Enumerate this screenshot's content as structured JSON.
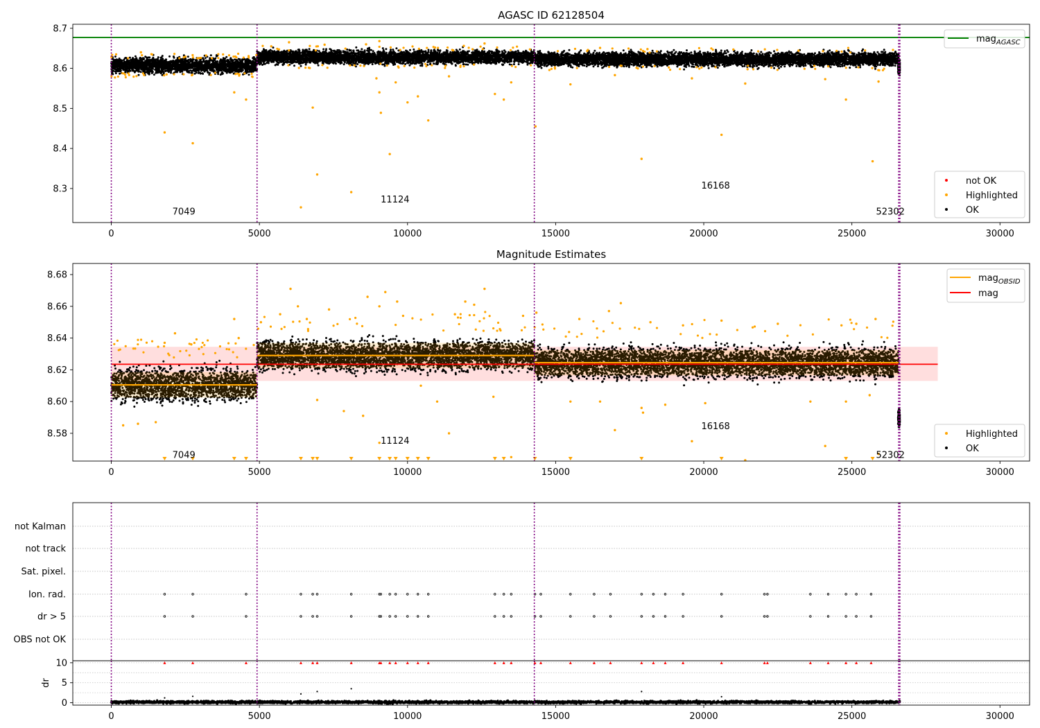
{
  "chart_data": [
    {
      "type": "scatter",
      "title": "AGASC ID 62128504",
      "xlim": [
        -1300,
        31000
      ],
      "ylim": [
        8.215,
        8.71
      ],
      "xticks": [
        0,
        5000,
        10000,
        15000,
        20000,
        25000,
        30000
      ],
      "xtick_labels": [
        "0",
        "5000",
        "10000",
        "15000",
        "20000",
        "25000",
        "30000"
      ],
      "yticks": [
        8.3,
        8.4,
        8.5,
        8.6,
        8.7
      ],
      "ytick_labels": [
        "8.3",
        "8.4",
        "8.5",
        "8.6",
        "8.7"
      ],
      "grid": false,
      "legend_upper": {
        "position": "upper-right",
        "entries": [
          {
            "name": "mag",
            "sub": "AGASC",
            "color": "#008000",
            "kind": "line"
          }
        ]
      },
      "legend_lower": {
        "position": "lower-right",
        "entries": [
          {
            "name": "not OK",
            "color": "#ff0000",
            "kind": "point"
          },
          {
            "name": "Highlighted",
            "color": "#ffa500",
            "kind": "point"
          },
          {
            "name": "OK",
            "color": "#000000",
            "kind": "point"
          }
        ]
      },
      "reference_line": {
        "name": "mag_AGASC",
        "y": 8.677,
        "color": "#008000"
      },
      "obs_boundaries": [
        0,
        4920,
        14280,
        26580,
        26620
      ],
      "obs_labels": [
        {
          "text": "7049",
          "x": 2450,
          "y": 8.235
        },
        {
          "text": "11124",
          "x": 9580,
          "y": 8.265
        },
        {
          "text": "16168",
          "x": 20400,
          "y": 8.3
        },
        {
          "text": "52302",
          "x": 26300,
          "y": 8.235
        }
      ],
      "ok_bands": [
        {
          "x0": 0,
          "x1": 4920,
          "center": 8.607,
          "spread": 0.02
        },
        {
          "x0": 4920,
          "x1": 14280,
          "center": 8.628,
          "spread": 0.018
        },
        {
          "x0": 14280,
          "x1": 26580,
          "center": 8.623,
          "spread": 0.018
        },
        {
          "x0": 26560,
          "x1": 26620,
          "center": 8.605,
          "spread": 0.02
        }
      ],
      "highlighted_points": [
        [
          1800,
          8.44
        ],
        [
          2750,
          8.413
        ],
        [
          4150,
          8.54
        ],
        [
          4550,
          8.522
        ],
        [
          6400,
          8.253
        ],
        [
          6800,
          8.502
        ],
        [
          6950,
          8.335
        ],
        [
          8100,
          8.291
        ],
        [
          8950,
          8.575
        ],
        [
          9050,
          8.54
        ],
        [
          9100,
          8.489
        ],
        [
          9400,
          8.386
        ],
        [
          9600,
          8.565
        ],
        [
          10000,
          8.515
        ],
        [
          10350,
          8.53
        ],
        [
          10700,
          8.47
        ],
        [
          11400,
          8.58
        ],
        [
          12950,
          8.536
        ],
        [
          13250,
          8.522
        ],
        [
          13500,
          8.565
        ],
        [
          14320,
          8.455
        ],
        [
          15500,
          8.56
        ],
        [
          17000,
          8.583
        ],
        [
          17900,
          8.374
        ],
        [
          19600,
          8.575
        ],
        [
          20600,
          8.434
        ],
        [
          21400,
          8.562
        ],
        [
          24100,
          8.573
        ],
        [
          24800,
          8.522
        ],
        [
          25700,
          8.368
        ],
        [
          25900,
          8.567
        ],
        [
          1000,
          8.64
        ],
        [
          3200,
          8.632
        ],
        [
          5400,
          8.655
        ],
        [
          6000,
          8.665
        ],
        [
          7200,
          8.659
        ],
        [
          8600,
          8.66
        ],
        [
          9050,
          8.668
        ],
        [
          11900,
          8.656
        ],
        [
          12600,
          8.662
        ],
        [
          16500,
          8.651
        ],
        [
          18100,
          8.648
        ],
        [
          21000,
          8.647
        ],
        [
          23200,
          8.644
        ]
      ]
    },
    {
      "type": "scatter",
      "title": "Magnitude Estimates",
      "xlim": [
        -1300,
        31000
      ],
      "ylim": [
        8.5625,
        8.687
      ],
      "xticks": [
        0,
        5000,
        10000,
        15000,
        20000,
        25000,
        30000
      ],
      "xtick_labels": [
        "0",
        "5000",
        "10000",
        "15000",
        "20000",
        "25000",
        "30000"
      ],
      "yticks": [
        8.58,
        8.6,
        8.62,
        8.64,
        8.66,
        8.68
      ],
      "ytick_labels": [
        "8.58",
        "8.60",
        "8.62",
        "8.64",
        "8.66",
        "8.68"
      ],
      "grid": false,
      "legend_upper": {
        "position": "upper-right",
        "entries": [
          {
            "name": "mag",
            "sub": "OBSID",
            "color": "#ffa500",
            "kind": "line"
          },
          {
            "name": "mag",
            "sub": "",
            "color": "#ff0000",
            "kind": "line"
          }
        ]
      },
      "legend_lower": {
        "position": "lower-right",
        "entries": [
          {
            "name": "Highlighted",
            "color": "#ffa500",
            "kind": "point"
          },
          {
            "name": "OK",
            "color": "#000000",
            "kind": "point"
          }
        ]
      },
      "mag_line": {
        "y": 8.6235,
        "band": [
          8.613,
          8.6345
        ],
        "x0": 0,
        "x1": 27900,
        "color": "#ff0000"
      },
      "obsid_mags": [
        {
          "x0": 0,
          "x1": 4920,
          "y": 8.6105,
          "band": [
            8.6025,
            8.6185
          ]
        },
        {
          "x0": 4920,
          "x1": 14280,
          "y": 8.629,
          "band": [
            8.621,
            8.637
          ]
        },
        {
          "x0": 14280,
          "x1": 26580,
          "y": 8.6245,
          "band": [
            8.6165,
            8.6325
          ]
        }
      ],
      "obs_boundaries": [
        0,
        4920,
        14280,
        26580,
        26620
      ],
      "obs_labels": [
        {
          "text": "7049",
          "x": 2450,
          "y": 8.5645
        },
        {
          "text": "11124",
          "x": 9580,
          "y": 8.5735
        },
        {
          "text": "16168",
          "x": 20400,
          "y": 8.5825
        },
        {
          "text": "52302",
          "x": 26300,
          "y": 8.5645
        }
      ],
      "ok_bands": [
        {
          "x0": 0,
          "x1": 4920,
          "center": 8.6105,
          "spread": 0.011
        },
        {
          "x0": 4920,
          "x1": 14280,
          "center": 8.629,
          "spread": 0.01
        },
        {
          "x0": 14280,
          "x1": 26580,
          "center": 8.6245,
          "spread": 0.01
        },
        {
          "x0": 26560,
          "x1": 26620,
          "center": 8.59,
          "spread": 0.006
        }
      ],
      "highlighted_points": [
        [
          400,
          8.585
        ],
        [
          900,
          8.586
        ],
        [
          1500,
          8.587
        ],
        [
          1800,
          8.637
        ],
        [
          2150,
          8.643
        ],
        [
          2700,
          8.636
        ],
        [
          4150,
          8.652
        ],
        [
          4300,
          8.64
        ],
        [
          5050,
          8.65
        ],
        [
          5700,
          8.655
        ],
        [
          6050,
          8.671
        ],
        [
          6300,
          8.66
        ],
        [
          6600,
          8.652
        ],
        [
          6950,
          8.601
        ],
        [
          7350,
          8.658
        ],
        [
          7850,
          8.594
        ],
        [
          8500,
          8.591
        ],
        [
          8650,
          8.666
        ],
        [
          9050,
          8.66
        ],
        [
          9050,
          8.574
        ],
        [
          9250,
          8.669
        ],
        [
          9650,
          8.663
        ],
        [
          9850,
          8.654
        ],
        [
          10450,
          8.61
        ],
        [
          11000,
          8.6
        ],
        [
          11400,
          8.58
        ],
        [
          11600,
          8.655
        ],
        [
          11950,
          8.663
        ],
        [
          12250,
          8.661
        ],
        [
          12600,
          8.671
        ],
        [
          12900,
          8.603
        ],
        [
          13500,
          8.565
        ],
        [
          13900,
          8.654
        ],
        [
          14350,
          8.656
        ],
        [
          15500,
          8.6
        ],
        [
          15800,
          8.652
        ],
        [
          16500,
          8.6
        ],
        [
          16800,
          8.657
        ],
        [
          17200,
          8.662
        ],
        [
          17000,
          8.582
        ],
        [
          17900,
          8.596
        ],
        [
          17950,
          8.593
        ],
        [
          18200,
          8.65
        ],
        [
          18700,
          8.598
        ],
        [
          19300,
          8.648
        ],
        [
          19600,
          8.575
        ],
        [
          20050,
          8.599
        ],
        [
          20600,
          8.651
        ],
        [
          21400,
          8.563
        ],
        [
          22500,
          8.649
        ],
        [
          23600,
          8.6
        ],
        [
          24100,
          8.572
        ],
        [
          24650,
          8.648
        ],
        [
          24800,
          8.6
        ],
        [
          25150,
          8.649
        ],
        [
          25600,
          8.604
        ],
        [
          25800,
          8.652
        ],
        [
          25900,
          8.567
        ]
      ],
      "clipped_points_x": [
        1800,
        2750,
        4150,
        4550,
        6400,
        6800,
        6950,
        8100,
        9050,
        9400,
        9600,
        10000,
        10350,
        10700,
        12950,
        13250,
        14300,
        15500,
        17900,
        20600,
        24800,
        25700
      ]
    },
    {
      "type": "scatter",
      "title": "",
      "xlim": [
        -1300,
        31000
      ],
      "categories": [
        "not Kalman",
        "not track",
        "Sat. pixel.",
        "Ion. rad.",
        "dr > 5",
        "OBS not OK"
      ],
      "flag_x": [
        1800,
        2750,
        4550,
        6400,
        6800,
        6950,
        8100,
        9050,
        9100,
        9400,
        9600,
        10000,
        10350,
        10700,
        12950,
        13250,
        13500,
        14300,
        14500,
        15500,
        16300,
        16850,
        17900,
        18300,
        18700,
        19300,
        20600,
        22050,
        22150,
        23600,
        24200,
        24800,
        25150,
        25650
      ],
      "flag_rows": [
        "Ion. rad.",
        "dr > 5"
      ],
      "obs_boundaries": [
        0,
        4920,
        14280,
        26580,
        26620
      ]
    },
    {
      "type": "scatter",
      "title": "",
      "ylabel": "dr",
      "xlim": [
        -1300,
        31000
      ],
      "ylim": [
        -0.6,
        10.5
      ],
      "xticks": [
        0,
        5000,
        10000,
        15000,
        20000,
        25000,
        30000
      ],
      "xtick_labels": [
        "0",
        "5000",
        "10000",
        "15000",
        "20000",
        "25000",
        "30000"
      ],
      "yticks": [
        0,
        5,
        10
      ],
      "ytick_labels": [
        "0",
        "5",
        "10"
      ],
      "grid": true,
      "ok_band": {
        "x0": 0,
        "x1": 26620,
        "center": 0.15,
        "spread": 0.35
      },
      "clipped_points_x": [
        1800,
        2750,
        4550,
        6400,
        6800,
        6950,
        8100,
        9050,
        9100,
        9400,
        9600,
        10000,
        10350,
        10700,
        12950,
        13250,
        13500,
        14300,
        14500,
        15500,
        16300,
        16850,
        17900,
        18300,
        18700,
        19300,
        20600,
        22050,
        22150,
        23600,
        24200,
        24800,
        25150,
        25650
      ],
      "outlier_points": [
        [
          1800,
          1.2
        ],
        [
          2750,
          1.6
        ],
        [
          6400,
          2.2
        ],
        [
          6950,
          2.8
        ],
        [
          8100,
          3.5
        ],
        [
          17900,
          2.8
        ],
        [
          20600,
          1.5
        ]
      ],
      "obs_boundaries": [
        0,
        4920,
        14280,
        26580,
        26620
      ]
    }
  ]
}
